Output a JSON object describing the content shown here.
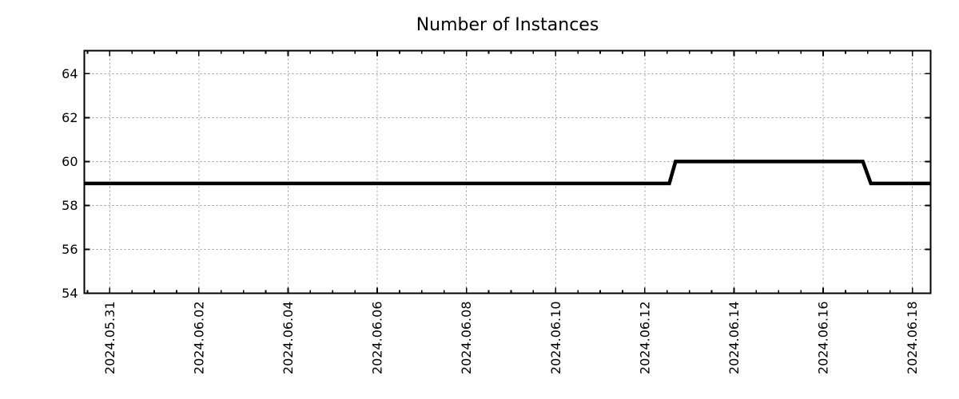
{
  "page": {
    "background_color": "#ffffff",
    "text_color": "#000000"
  },
  "chart_data": {
    "type": "line",
    "title": "Number of Instances",
    "legend": {
      "show": false
    },
    "grid": {
      "show": true,
      "style": "dotted",
      "color": "#999999"
    },
    "x_axis": {
      "kind": "time",
      "label": "",
      "day_zero_label": "2024.05.31",
      "tick_labels": [
        "2024.05.31",
        "2024.06.02",
        "2024.06.04",
        "2024.06.06",
        "2024.06.08",
        "2024.06.10",
        "2024.06.12",
        "2024.06.14",
        "2024.06.16",
        "2024.06.18"
      ],
      "tick_positions_days": [
        0,
        2,
        4,
        6,
        8,
        10,
        12,
        14,
        16,
        18
      ],
      "minor_tick_step_days": 0.5,
      "range_days": [
        -0.57,
        18.41
      ],
      "tick_label_rotation_deg": -90
    },
    "y_axis": {
      "label": "",
      "tick_labels": [
        "54",
        "56",
        "58",
        "60",
        "62",
        "64"
      ],
      "tick_values": [
        54,
        56,
        58,
        60,
        62,
        64
      ],
      "range": [
        54,
        65.05
      ]
    },
    "series": [
      {
        "name": "Number of Instances",
        "color": "#000000",
        "line_width": 4.5,
        "points_days_value": [
          [
            -0.57,
            59
          ],
          [
            12.55,
            59
          ],
          [
            12.69,
            60
          ],
          [
            16.89,
            60
          ],
          [
            17.07,
            59
          ],
          [
            18.41,
            59
          ]
        ]
      }
    ]
  }
}
